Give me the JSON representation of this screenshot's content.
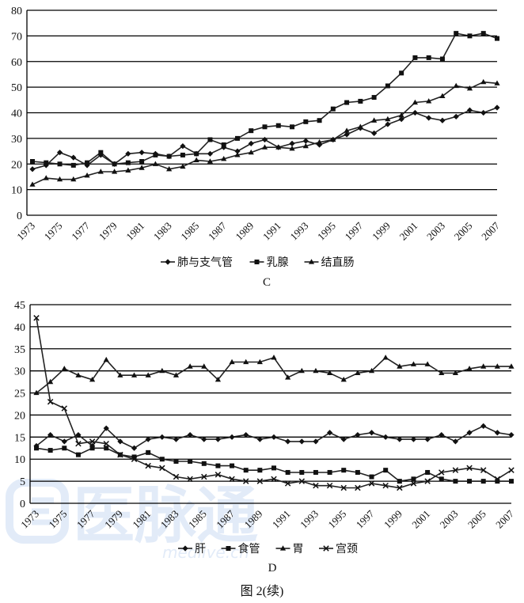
{
  "figure_caption": "图 2(续)",
  "watermark": {
    "logo_text": "医脉通",
    "url": "medlive.cn"
  },
  "chart_data": [
    {
      "type": "line",
      "panel_label": "C",
      "ylim": [
        0,
        80
      ],
      "yticks": [
        0,
        10,
        20,
        30,
        40,
        50,
        60,
        70,
        80
      ],
      "x": [
        1973,
        1974,
        1975,
        1976,
        1977,
        1978,
        1979,
        1980,
        1981,
        1982,
        1983,
        1984,
        1985,
        1986,
        1987,
        1988,
        1989,
        1990,
        1991,
        1992,
        1993,
        1994,
        1995,
        1996,
        1997,
        1998,
        1999,
        2000,
        2001,
        2002,
        2003,
        2004,
        2005,
        2006,
        2007
      ],
      "xtick_labels": [
        "1973",
        "1975",
        "1977",
        "1979",
        "1981",
        "1983",
        "1985",
        "1987",
        "1989",
        "1991",
        "1993",
        "1995",
        "1997",
        "1999",
        "2001",
        "2003",
        "2005",
        "2007"
      ],
      "grid": true,
      "legend_position": "bottom",
      "series": [
        {
          "name": "肺与支气管",
          "marker": "diamond",
          "values": [
            18,
            19.5,
            24.5,
            22.5,
            19.5,
            23.5,
            20,
            24,
            24.5,
            24,
            23,
            27,
            24,
            24,
            26.5,
            25,
            28,
            29.5,
            26.5,
            28,
            29,
            27.5,
            29.5,
            31.5,
            34,
            32,
            35.5,
            37.5,
            40,
            38,
            37,
            38.5,
            41,
            40,
            42
          ]
        },
        {
          "name": "乳腺",
          "marker": "square",
          "values": [
            21,
            20.5,
            20,
            19.5,
            20.5,
            24.5,
            20,
            20.5,
            21,
            23.5,
            23,
            23.5,
            24,
            29.5,
            27.5,
            30,
            33,
            34.5,
            35,
            34.5,
            36.5,
            37,
            41.5,
            44,
            44.5,
            46,
            50.5,
            55.5,
            61.5,
            61.5,
            61,
            71,
            70,
            71,
            69
          ]
        },
        {
          "name": "结直肠",
          "marker": "triangle",
          "values": [
            12,
            14.5,
            14,
            14,
            15.5,
            17,
            17,
            17.5,
            18.5,
            20,
            18,
            19,
            21.5,
            21,
            22,
            23.5,
            24.5,
            26.5,
            26.5,
            26,
            27,
            28.5,
            29.5,
            33,
            34.5,
            37,
            37.5,
            39,
            44,
            44.5,
            46.5,
            50.5,
            49.5,
            52,
            51.5
          ]
        }
      ]
    },
    {
      "type": "line",
      "panel_label": "D",
      "ylim": [
        0,
        45
      ],
      "yticks": [
        0,
        5,
        10,
        15,
        20,
        25,
        30,
        35,
        40,
        45
      ],
      "x": [
        1973,
        1974,
        1975,
        1976,
        1977,
        1978,
        1979,
        1980,
        1981,
        1982,
        1983,
        1984,
        1985,
        1986,
        1987,
        1988,
        1989,
        1990,
        1991,
        1992,
        1993,
        1994,
        1995,
        1996,
        1997,
        1998,
        1999,
        2000,
        2001,
        2002,
        2003,
        2004,
        2005,
        2006,
        2007
      ],
      "xtick_labels": [
        "1973",
        "1975",
        "1977",
        "1979",
        "1981",
        "1983",
        "1985",
        "1987",
        "1989",
        "1991",
        "1993",
        "1995",
        "1997",
        "1999",
        "2001",
        "2003",
        "2005",
        "2007"
      ],
      "grid": true,
      "legend_position": "bottom",
      "series": [
        {
          "name": "肝",
          "marker": "diamond",
          "values": [
            13,
            15.5,
            14,
            15.5,
            13,
            17,
            14,
            12.5,
            14.5,
            15,
            14.5,
            15.5,
            14.5,
            14.5,
            15,
            15.5,
            14.5,
            15,
            14,
            14,
            14,
            16,
            14.5,
            15.5,
            16,
            15,
            14.5,
            14.5,
            14.5,
            15.5,
            14,
            16,
            17.5,
            16,
            15.5
          ]
        },
        {
          "name": "食管",
          "marker": "square",
          "values": [
            12.5,
            12,
            12.5,
            11,
            12.5,
            12.5,
            11,
            10.5,
            11.5,
            10,
            9.5,
            9.5,
            9,
            8.5,
            8.5,
            7.5,
            7.5,
            8,
            7,
            7,
            7,
            7,
            7.5,
            7,
            6,
            7.5,
            5,
            5.5,
            7,
            5.5,
            5,
            5,
            5,
            5,
            5
          ]
        },
        {
          "name": "胃",
          "marker": "triangle",
          "values": [
            25,
            27.5,
            30.5,
            29,
            28,
            32.5,
            29,
            29,
            29,
            30,
            29,
            31,
            31,
            28,
            32,
            32,
            32,
            33,
            28.5,
            30,
            30,
            29.5,
            28,
            29.5,
            30,
            33,
            31,
            31.5,
            31.5,
            29.5,
            29.5,
            30.5,
            31,
            31,
            31
          ]
        },
        {
          "name": "宫颈",
          "marker": "x",
          "values": [
            42,
            23,
            21.5,
            13.5,
            14,
            13.5,
            11,
            10,
            8.5,
            8,
            6,
            5.5,
            6,
            6.5,
            5.5,
            5,
            5,
            5.5,
            4.5,
            5,
            4,
            4,
            3.5,
            3.5,
            4.5,
            4,
            3.5,
            4.5,
            5,
            7,
            7.5,
            8,
            7.5,
            5.5,
            7.5
          ]
        }
      ]
    }
  ]
}
